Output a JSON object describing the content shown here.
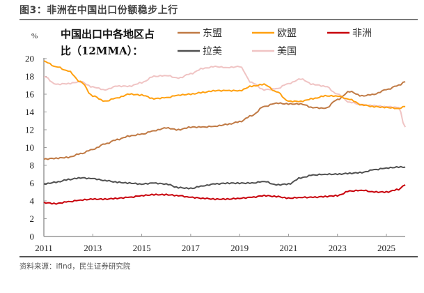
{
  "figure": {
    "title": "图3：非洲在中国出口份额稳步上行",
    "source": "资料来源：ifind，民生证券研究院"
  },
  "chart_data": {
    "type": "line",
    "title_lines": [
      "中国出口中各地区占",
      "比（12MMA）："
    ],
    "unit": "%",
    "xlabel": "",
    "ylabel": "%",
    "xlim": [
      2011,
      2025.77
    ],
    "ylim": [
      0,
      20
    ],
    "x_ticks": [
      "2011",
      "2013",
      "2015",
      "2017",
      "2019",
      "2021",
      "2023",
      "2025"
    ],
    "y_ticks": [
      "0",
      "2",
      "4",
      "6",
      "8",
      "10",
      "12",
      "14",
      "16",
      "18",
      "20"
    ],
    "grid": false,
    "legend_position": "top-right",
    "x": [
      2011,
      2011.5,
      2012,
      2012.5,
      2013,
      2013.5,
      2014,
      2014.5,
      2015,
      2015.5,
      2016,
      2016.5,
      2017,
      2017.5,
      2018,
      2018.5,
      2019,
      2019.5,
      2020,
      2020.5,
      2021,
      2021.5,
      2022,
      2022.5,
      2023,
      2023.5,
      2024,
      2024.5,
      2025,
      2025.5,
      2025.77
    ],
    "series": [
      {
        "name": "东盟",
        "color": "#C07A45",
        "values": [
          8.7,
          8.8,
          8.9,
          9.3,
          9.8,
          10.4,
          10.9,
          11.3,
          11.5,
          11.9,
          12.2,
          12.0,
          12.3,
          12.3,
          12.4,
          12.6,
          12.9,
          13.6,
          14.6,
          15.0,
          14.9,
          14.9,
          14.5,
          14.4,
          15.4,
          16.3,
          15.8,
          16.0,
          16.5,
          17.0,
          17.4
        ]
      },
      {
        "name": "欧盟",
        "color": "#FFA010",
        "values": [
          19.7,
          19.1,
          18.6,
          17.4,
          15.8,
          15.2,
          15.6,
          16.0,
          15.9,
          15.5,
          15.6,
          15.9,
          16.0,
          16.2,
          16.4,
          16.4,
          16.4,
          16.9,
          17.1,
          16.3,
          15.2,
          15.2,
          15.5,
          15.8,
          15.8,
          15.4,
          14.8,
          14.6,
          14.5,
          14.4,
          14.6
        ]
      },
      {
        "name": "非洲",
        "color": "#C8000A",
        "values": [
          3.8,
          3.7,
          3.9,
          4.1,
          4.2,
          4.2,
          4.3,
          4.4,
          4.6,
          4.7,
          4.7,
          4.6,
          4.4,
          4.3,
          4.2,
          4.2,
          4.3,
          4.4,
          4.6,
          4.5,
          4.3,
          4.4,
          4.4,
          4.5,
          4.6,
          5.1,
          5.2,
          5.0,
          5.0,
          5.3,
          5.8
        ]
      },
      {
        "name": "拉美",
        "color": "#505050",
        "values": [
          5.9,
          6.1,
          6.4,
          6.6,
          6.5,
          6.3,
          6.1,
          6.0,
          5.9,
          6.0,
          5.9,
          5.5,
          5.4,
          5.7,
          5.9,
          6.0,
          6.0,
          6.0,
          6.2,
          5.8,
          5.9,
          6.6,
          6.9,
          7.0,
          7.0,
          7.1,
          7.2,
          7.5,
          7.7,
          7.8,
          7.8
        ]
      },
      {
        "name": "美国",
        "color": "#F0C4C4",
        "values": [
          18.0,
          17.1,
          17.2,
          17.4,
          16.8,
          16.5,
          16.9,
          16.9,
          17.3,
          18.0,
          18.1,
          17.8,
          18.3,
          18.9,
          19.1,
          19.0,
          19.1,
          17.3,
          16.5,
          16.6,
          17.2,
          17.7,
          17.1,
          16.9,
          16.0,
          15.1,
          14.8,
          14.7,
          14.6,
          14.5,
          12.3
        ]
      }
    ]
  }
}
